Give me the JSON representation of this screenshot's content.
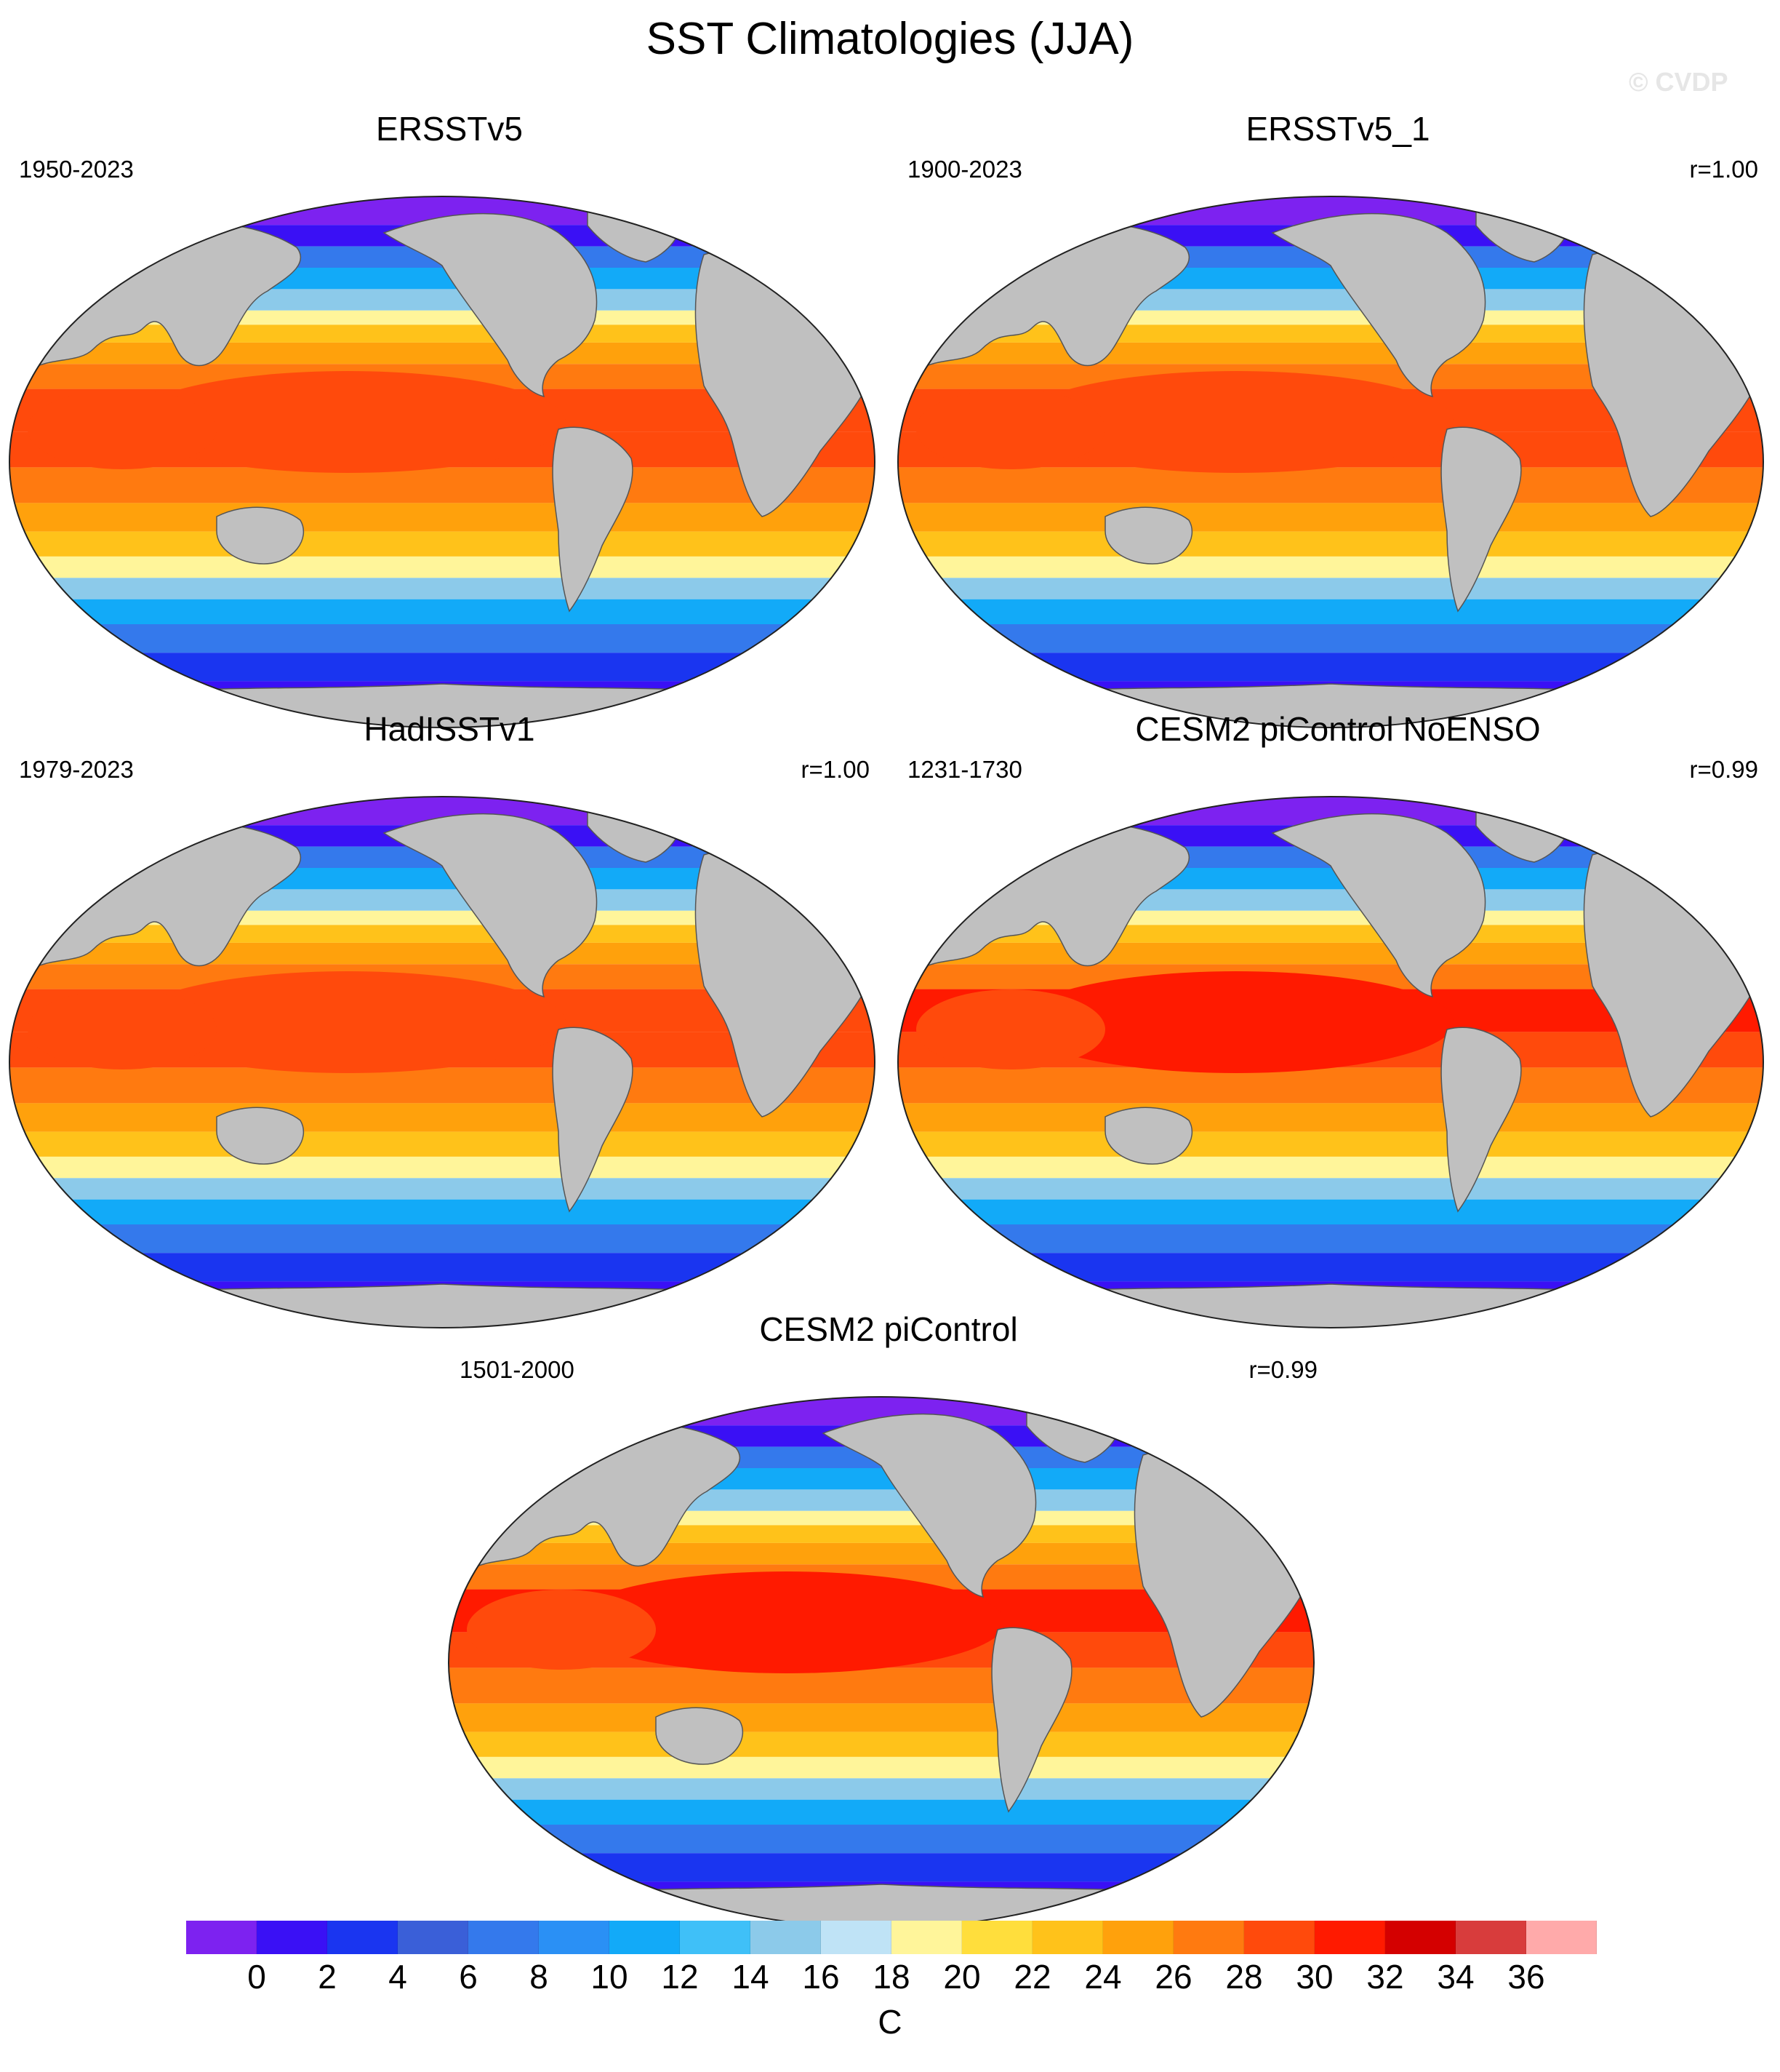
{
  "title": "SST Climatologies (JJA)",
  "watermark": "© CVDP",
  "panels": [
    {
      "title": "ERSSTv5",
      "years": "1950-2023",
      "r": "",
      "style": "obs"
    },
    {
      "title": "ERSSTv5_1",
      "years": "1900-2023",
      "r": "r=1.00",
      "style": "obs"
    },
    {
      "title": "HadISSTv1",
      "years": "1979-2023",
      "r": "r=1.00",
      "style": "obs"
    },
    {
      "title": "CESM2 piControl NoENSO",
      "years": "1231-1730",
      "r": "r=0.99",
      "style": "model"
    },
    {
      "title": "CESM2 piControl",
      "years": "1501-2000",
      "r": "r=0.99",
      "style": "model"
    }
  ],
  "colorbar": {
    "unit": "C",
    "labels": [
      "0",
      "2",
      "4",
      "6",
      "8",
      "10",
      "12",
      "14",
      "16",
      "18",
      "20",
      "22",
      "24",
      "26",
      "28",
      "30",
      "32",
      "34",
      "36"
    ],
    "colors": [
      "#7d22f0",
      "#3a10f5",
      "#1a35f0",
      "#3a5fd8",
      "#3479ec",
      "#2a90f5",
      "#12aaf8",
      "#3fc0f8",
      "#8ccaea",
      "#bfe3f6",
      "#fff59a",
      "#ffde3c",
      "#ffc21a",
      "#ffa10c",
      "#ff7a10",
      "#ff4a0c",
      "#ff1a00",
      "#d40000",
      "#d83c3c",
      "#ffaaaa"
    ]
  }
}
